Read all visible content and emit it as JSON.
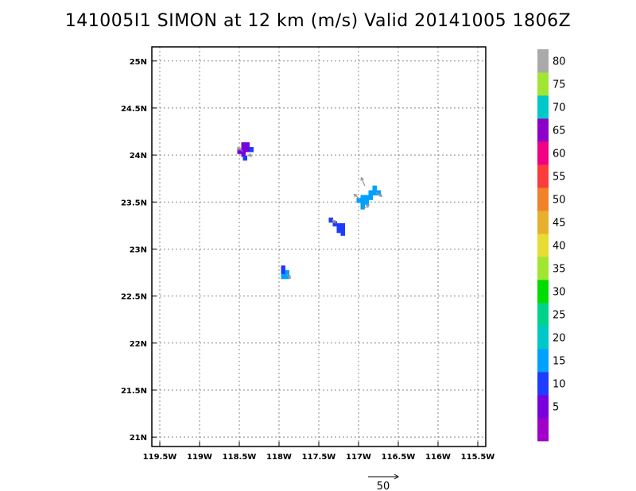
{
  "title": "141005I1 SIMON at 12 km (m/s) Valid 20141005 1806Z",
  "chart_data": {
    "type": "heatmap",
    "title": "141005I1 SIMON at 12 km (m/s) Valid 20141005 1806Z",
    "xlabel": "",
    "ylabel": "",
    "xlim": [
      -119.6,
      -115.4
    ],
    "ylim": [
      20.9,
      25.15
    ],
    "grid": true,
    "x_ticks": [
      {
        "value": -119.5,
        "label": "119.5W"
      },
      {
        "value": -119.0,
        "label": "119W"
      },
      {
        "value": -118.5,
        "label": "118.5W"
      },
      {
        "value": -118.0,
        "label": "118W"
      },
      {
        "value": -117.5,
        "label": "117.5W"
      },
      {
        "value": -117.0,
        "label": "117W"
      },
      {
        "value": -116.5,
        "label": "116.5W"
      },
      {
        "value": -116.0,
        "label": "116W"
      },
      {
        "value": -115.5,
        "label": "115.5W"
      }
    ],
    "y_ticks": [
      {
        "value": 21.0,
        "label": "21N"
      },
      {
        "value": 21.5,
        "label": "21.5N"
      },
      {
        "value": 22.0,
        "label": "22N"
      },
      {
        "value": 22.5,
        "label": "22.5N"
      },
      {
        "value": 23.0,
        "label": "23N"
      },
      {
        "value": 23.5,
        "label": "23.5N"
      },
      {
        "value": 24.0,
        "label": "24N"
      },
      {
        "value": 24.5,
        "label": "24.5N"
      },
      {
        "value": 25.0,
        "label": "25N"
      }
    ],
    "cells": [
      {
        "lon": -118.45,
        "lat": 24.11,
        "value": 7
      },
      {
        "lon": -118.4,
        "lat": 24.11,
        "value": 7
      },
      {
        "lon": -118.45,
        "lat": 24.06,
        "value": 7
      },
      {
        "lon": -118.4,
        "lat": 24.06,
        "value": 7
      },
      {
        "lon": -118.5,
        "lat": 24.04,
        "value": 7
      },
      {
        "lon": -118.45,
        "lat": 24.01,
        "value": 7
      },
      {
        "lon": -118.35,
        "lat": 24.06,
        "value": 11
      },
      {
        "lon": -118.43,
        "lat": 23.97,
        "value": 11
      },
      {
        "lon": -117.35,
        "lat": 23.31,
        "value": 11
      },
      {
        "lon": -117.3,
        "lat": 23.27,
        "value": 11
      },
      {
        "lon": -117.25,
        "lat": 23.25,
        "value": 11
      },
      {
        "lon": -117.2,
        "lat": 23.25,
        "value": 11
      },
      {
        "lon": -117.25,
        "lat": 23.2,
        "value": 11
      },
      {
        "lon": -117.2,
        "lat": 23.2,
        "value": 11
      },
      {
        "lon": -117.2,
        "lat": 23.17,
        "value": 11
      },
      {
        "lon": -117.0,
        "lat": 23.52,
        "value": 17
      },
      {
        "lon": -116.95,
        "lat": 23.55,
        "value": 17
      },
      {
        "lon": -116.95,
        "lat": 23.5,
        "value": 17
      },
      {
        "lon": -116.9,
        "lat": 23.55,
        "value": 17
      },
      {
        "lon": -116.9,
        "lat": 23.5,
        "value": 17
      },
      {
        "lon": -116.95,
        "lat": 23.45,
        "value": 17
      },
      {
        "lon": -116.85,
        "lat": 23.6,
        "value": 17
      },
      {
        "lon": -116.8,
        "lat": 23.6,
        "value": 17
      },
      {
        "lon": -116.8,
        "lat": 23.65,
        "value": 17
      },
      {
        "lon": -116.75,
        "lat": 23.6,
        "value": 17
      },
      {
        "lon": -116.85,
        "lat": 23.55,
        "value": 17
      },
      {
        "lon": -117.95,
        "lat": 22.8,
        "value": 11
      },
      {
        "lon": -117.95,
        "lat": 22.75,
        "value": 11
      },
      {
        "lon": -117.9,
        "lat": 22.75,
        "value": 17
      },
      {
        "lon": -117.9,
        "lat": 22.71,
        "value": 17
      },
      {
        "lon": -117.95,
        "lat": 22.71,
        "value": 17
      }
    ],
    "vectors": [
      {
        "lon": -118.46,
        "lat": 24.04,
        "u": -8,
        "v": 6
      },
      {
        "lon": -118.38,
        "lat": 24.01,
        "u": 4,
        "v": -4
      },
      {
        "lon": -117.28,
        "lat": 23.27,
        "u": -6,
        "v": 6
      },
      {
        "lon": -116.92,
        "lat": 23.67,
        "u": -6,
        "v": 14
      },
      {
        "lon": -116.98,
        "lat": 23.53,
        "u": -10,
        "v": 8
      },
      {
        "lon": -116.93,
        "lat": 23.43,
        "u": 8,
        "v": 6
      },
      {
        "lon": -116.78,
        "lat": 23.6,
        "u": 10,
        "v": -6
      },
      {
        "lon": -117.9,
        "lat": 22.73,
        "u": 6,
        "v": -6
      }
    ],
    "reference_vector": {
      "label": "50",
      "value": 50
    },
    "colorbar": {
      "bins": [
        {
          "from": 0,
          "to": 5,
          "color": "#a000c8"
        },
        {
          "from": 5,
          "to": 10,
          "color": "#7800dc"
        },
        {
          "from": 10,
          "to": 15,
          "color": "#1e3cff"
        },
        {
          "from": 15,
          "to": 20,
          "color": "#00a0ff"
        },
        {
          "from": 20,
          "to": 25,
          "color": "#00c8c8"
        },
        {
          "from": 25,
          "to": 30,
          "color": "#00d28c"
        },
        {
          "from": 30,
          "to": 35,
          "color": "#00dc00"
        },
        {
          "from": 35,
          "to": 40,
          "color": "#a0e632"
        },
        {
          "from": 40,
          "to": 45,
          "color": "#e6dc32"
        },
        {
          "from": 45,
          "to": 50,
          "color": "#e6af2d"
        },
        {
          "from": 50,
          "to": 55,
          "color": "#f08228"
        },
        {
          "from": 55,
          "to": 60,
          "color": "#fa3c3c"
        },
        {
          "from": 60,
          "to": 65,
          "color": "#f00082"
        },
        {
          "from": 65,
          "to": 70,
          "color": "#8c00c8"
        },
        {
          "from": 70,
          "to": 75,
          "color": "#00c8c8"
        },
        {
          "from": 75,
          "to": 80,
          "color": "#a0e632"
        },
        {
          "from": 80,
          "to": 85,
          "color": "#aaaaaa"
        }
      ],
      "labels": [
        "5",
        "10",
        "15",
        "20",
        "25",
        "30",
        "35",
        "40",
        "45",
        "50",
        "55",
        "60",
        "65",
        "70",
        "75",
        "80"
      ]
    }
  }
}
